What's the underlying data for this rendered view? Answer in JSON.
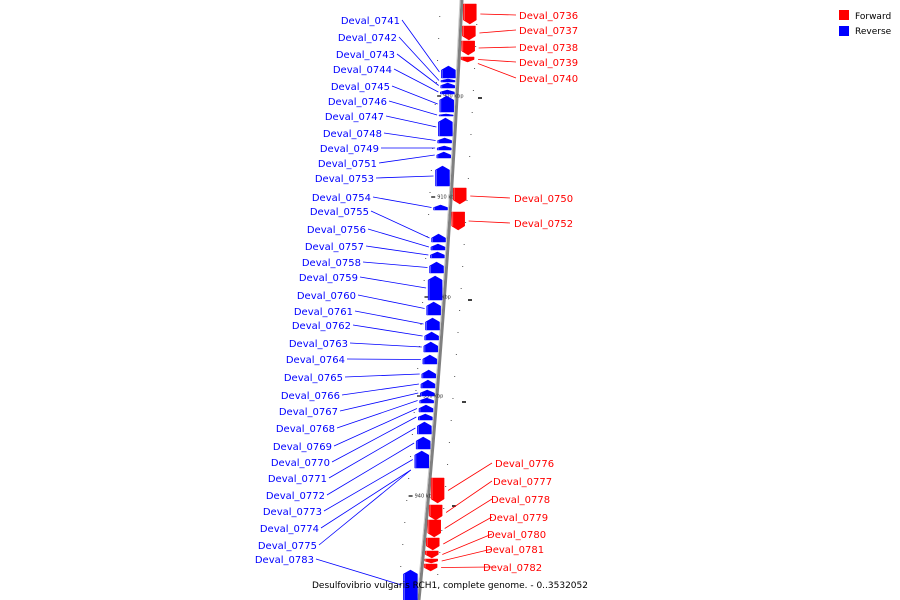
{
  "legend": {
    "forward": {
      "label": "Forward",
      "color": "#ff0000"
    },
    "reverse": {
      "label": "Reverse",
      "color": "#0000ff"
    }
  },
  "caption": "Desulfovibrio vulgaris RCH1, complete genome. - 0..3532052",
  "ticks": [
    "900 kbp",
    "910 kbp",
    "920 kbp",
    "930 kbp",
    "940 kbp"
  ],
  "forward_genes": [
    "Deval_0736",
    "Deval_0737",
    "Deval_0738",
    "Deval_0739",
    "Deval_0740",
    "Deval_0750",
    "Deval_0752",
    "Deval_0776",
    "Deval_0777",
    "Deval_0778",
    "Deval_0779",
    "Deval_0780",
    "Deval_0781",
    "Deval_0782"
  ],
  "reverse_genes": [
    "Deval_0741",
    "Deval_0742",
    "Deval_0743",
    "Deval_0744",
    "Deval_0745",
    "Deval_0746",
    "Deval_0747",
    "Deval_0748",
    "Deval_0749",
    "Deval_0751",
    "Deval_0753",
    "Deval_0754",
    "Deval_0755",
    "Deval_0756",
    "Deval_0757",
    "Deval_0758",
    "Deval_0759",
    "Deval_0760",
    "Deval_0761",
    "Deval_0762",
    "Deval_0763",
    "Deval_0764",
    "Deval_0765",
    "Deval_0766",
    "Deval_0767",
    "Deval_0768",
    "Deval_0769",
    "Deval_0770",
    "Deval_0771",
    "Deval_0772",
    "Deval_0773",
    "Deval_0774",
    "Deval_0775",
    "Deval_0783"
  ]
}
